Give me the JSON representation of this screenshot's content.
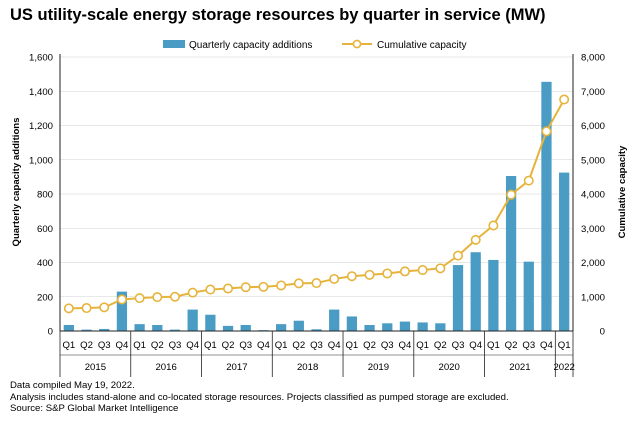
{
  "title": "US utility-scale energy storage resources by quarter in service (MW)",
  "notes": [
    "Data compiled May 19, 2022.",
    "Analysis includes stand-alone and co-located storage resources. Projects classified as pumped storage are excluded.",
    "Source: S&P Global Market Intelligence"
  ],
  "colors": {
    "bar": "#4a9cc4",
    "line": "#e6b43c",
    "axis": "#222222",
    "grid": "#d0d0d0"
  },
  "chart_data": {
    "type": "bar+line",
    "categories": [
      "Q1",
      "Q2",
      "Q3",
      "Q4",
      "Q1",
      "Q2",
      "Q3",
      "Q4",
      "Q1",
      "Q2",
      "Q3",
      "Q4",
      "Q1",
      "Q2",
      "Q3",
      "Q4",
      "Q1",
      "Q2",
      "Q3",
      "Q4",
      "Q1",
      "Q2",
      "Q3",
      "Q4",
      "Q1",
      "Q2",
      "Q3",
      "Q4",
      "Q1"
    ],
    "year_groups": [
      {
        "label": "2015",
        "count": 4
      },
      {
        "label": "2016",
        "count": 4
      },
      {
        "label": "2017",
        "count": 4
      },
      {
        "label": "2018",
        "count": 4
      },
      {
        "label": "2019",
        "count": 4
      },
      {
        "label": "2020",
        "count": 4
      },
      {
        "label": "2021",
        "count": 4
      },
      {
        "label": "2022",
        "count": 1
      }
    ],
    "series": [
      {
        "name": "Quarterly capacity additions",
        "type": "bar",
        "axis": "left",
        "values": [
          35,
          8,
          12,
          230,
          40,
          35,
          8,
          125,
          95,
          30,
          35,
          5,
          40,
          60,
          10,
          125,
          85,
          35,
          45,
          55,
          50,
          45,
          385,
          460,
          415,
          905,
          405,
          1455,
          925
        ]
      },
      {
        "name": "Cumulative capacity",
        "type": "line",
        "axis": "right",
        "values": [
          660,
          670,
          690,
          920,
          960,
          990,
          1000,
          1120,
          1210,
          1240,
          1280,
          1290,
          1330,
          1390,
          1400,
          1520,
          1600,
          1640,
          1680,
          1740,
          1780,
          1830,
          2200,
          2660,
          3080,
          3980,
          4390,
          5830,
          6760
        ]
      }
    ],
    "ylabel_left": "Quarterly capacity additions",
    "ylabel_right": "Cumulative capacity",
    "ylim_left": [
      0,
      1600
    ],
    "ylim_right": [
      0,
      8000
    ],
    "yticks_left": [
      "0",
      "200",
      "400",
      "600",
      "800",
      "1,000",
      "1,200",
      "1,400",
      "1,600"
    ],
    "yticks_right": [
      "0",
      "1,000",
      "2,000",
      "3,000",
      "4,000",
      "5,000",
      "6,000",
      "7,000",
      "8,000"
    ],
    "legend_position": "top-center"
  }
}
